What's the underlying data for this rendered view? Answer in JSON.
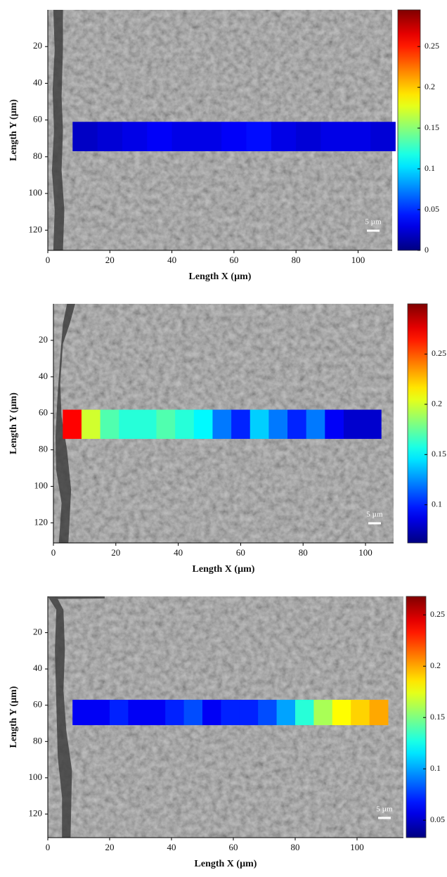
{
  "chart_data": [
    {
      "type": "heatmap",
      "xlabel": "Length X (µm)",
      "ylabel": "Length Y (µm)",
      "xlim": [
        0,
        111
      ],
      "ylim": [
        131,
        0
      ],
      "xticks": [
        0,
        20,
        40,
        60,
        80,
        100
      ],
      "yticks": [
        20,
        40,
        60,
        80,
        100,
        120
      ],
      "colormap": "jet",
      "clim": [
        0,
        0.295
      ],
      "cticks": [
        0,
        0.05,
        0.1,
        0.15,
        0.2,
        0.25
      ],
      "strip": {
        "y": [
          61,
          77
        ],
        "x": [
          12,
          20,
          28,
          36,
          44,
          52,
          60,
          68,
          76,
          84,
          92,
          100,
          108
        ],
        "values": [
          0.02,
          0.025,
          0.03,
          0.035,
          0.03,
          0.03,
          0.035,
          0.04,
          0.03,
          0.025,
          0.03,
          0.03,
          0.025
        ]
      },
      "scale_bar": "5 µm"
    },
    {
      "type": "heatmap",
      "xlabel": "Length X (µm)",
      "ylabel": "Length Y (µm)",
      "xlim": [
        0,
        109
      ],
      "ylim": [
        131,
        0
      ],
      "xticks": [
        0,
        20,
        40,
        60,
        80,
        100
      ],
      "yticks": [
        20,
        40,
        60,
        80,
        100,
        120
      ],
      "colormap": "jet",
      "clim": [
        0.062,
        0.3
      ],
      "cticks": [
        0.1,
        0.15,
        0.2,
        0.25
      ],
      "strip": {
        "y": [
          58,
          74
        ],
        "x": [
          6,
          12,
          18,
          24,
          30,
          36,
          42,
          48,
          54,
          60,
          66,
          72,
          78,
          84,
          90,
          96,
          102
        ],
        "values": [
          0.27,
          0.2,
          0.17,
          0.16,
          0.16,
          0.17,
          0.16,
          0.15,
          0.12,
          0.1,
          0.14,
          0.12,
          0.1,
          0.12,
          0.09,
          0.08,
          0.08
        ]
      },
      "scale_bar": "5 µm"
    },
    {
      "type": "heatmap",
      "xlabel": "Length X (µm)",
      "ylabel": "Length Y (µm)",
      "xlim": [
        0,
        115
      ],
      "ylim": [
        133,
        0
      ],
      "xticks": [
        0,
        20,
        40,
        60,
        80,
        100
      ],
      "yticks": [
        20,
        40,
        60,
        80,
        100,
        120
      ],
      "colormap": "jet",
      "clim": [
        0.033,
        0.268
      ],
      "cticks": [
        0.05,
        0.1,
        0.15,
        0.2,
        0.25
      ],
      "strip": {
        "y": [
          57,
          71
        ],
        "x": [
          11,
          17,
          23,
          29,
          35,
          41,
          47,
          53,
          59,
          65,
          71,
          77,
          83,
          89,
          95,
          101,
          107
        ],
        "values": [
          0.06,
          0.06,
          0.07,
          0.06,
          0.06,
          0.07,
          0.08,
          0.06,
          0.07,
          0.07,
          0.08,
          0.1,
          0.13,
          0.16,
          0.18,
          0.19,
          0.2
        ]
      },
      "scale_bar": "5 µm"
    }
  ]
}
